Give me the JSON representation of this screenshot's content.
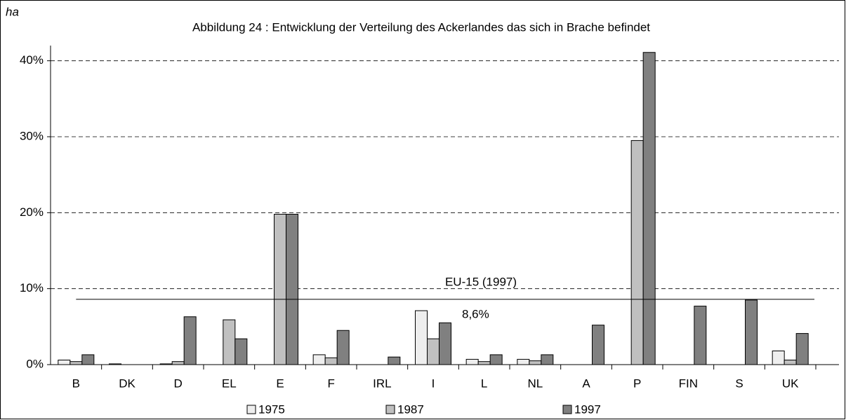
{
  "chart_data": {
    "type": "bar",
    "title": "Abbildung 24 : Entwicklung der Verteilung des Ackerlandes das sich in Brache befindet",
    "y_axis_label": "ha",
    "categories": [
      "B",
      "DK",
      "D",
      "EL",
      "E",
      "F",
      "IRL",
      "I",
      "L",
      "NL",
      "A",
      "P",
      "FIN",
      "S",
      "UK"
    ],
    "series": [
      {
        "name": "1975",
        "color": "#eeeeee",
        "values": [
          0.6,
          0.1,
          0.1,
          0,
          0,
          1.3,
          0,
          7.1,
          0.7,
          0.7,
          0,
          0,
          0,
          0,
          1.8
        ]
      },
      {
        "name": "1987",
        "color": "#c0c0c0",
        "values": [
          0.4,
          0,
          0.4,
          5.9,
          19.8,
          0.9,
          0,
          3.4,
          0.4,
          0.5,
          0,
          29.5,
          0,
          0,
          0.6
        ]
      },
      {
        "name": "1997",
        "color": "#808080",
        "values": [
          1.3,
          0,
          6.3,
          3.4,
          19.8,
          4.5,
          1.0,
          5.5,
          1.3,
          1.3,
          5.2,
          41.1,
          7.7,
          8.5,
          4.1
        ]
      }
    ],
    "ylim": [
      0,
      42
    ],
    "yticks": [
      {
        "value": 0,
        "label": "0%"
      },
      {
        "value": 10,
        "label": "10%"
      },
      {
        "value": 20,
        "label": "20%"
      },
      {
        "value": 30,
        "label": "30%"
      },
      {
        "value": 40,
        "label": "40%"
      }
    ],
    "grid": true,
    "reference_line": {
      "name": "EU-15 (1997)",
      "value": 8.6,
      "label": "8,6%"
    },
    "legend": "bottom"
  }
}
